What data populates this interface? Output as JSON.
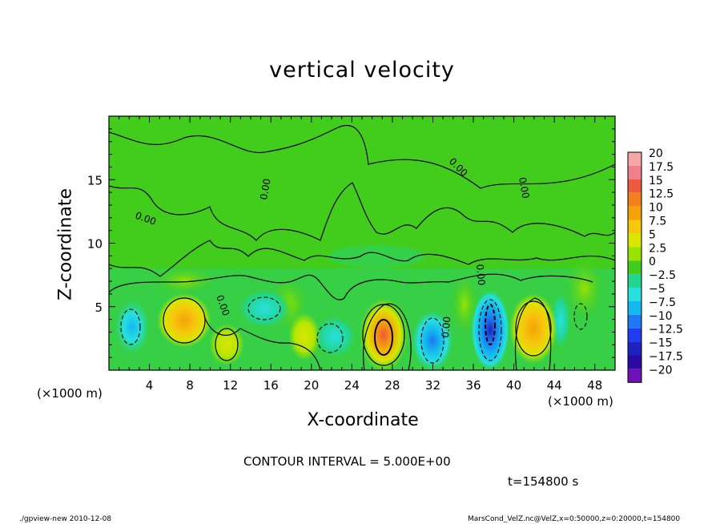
{
  "title": "vertical velocity",
  "contour_interval": "CONTOUR INTERVAL = 5.000E+00",
  "time_label": "t=154800 s",
  "footer_left": "./gpview-new  2010-12-08",
  "footer_right": "MarsCond_VelZ.nc@VelZ,x=0:50000,z=0:20000,t=154800",
  "chart_data": {
    "type": "heatmap",
    "title": "vertical velocity",
    "xlabel": "X-coordinate",
    "ylabel": "Z-coordinate",
    "x_unit": "(×1000 m)",
    "y_unit": "(×1000 m)",
    "xlim": [
      0,
      50
    ],
    "ylim": [
      0,
      20
    ],
    "x_ticks": [
      4,
      8,
      12,
      16,
      20,
      24,
      28,
      32,
      36,
      40,
      44,
      48
    ],
    "y_ticks": [
      5,
      10,
      15
    ],
    "colorbar": {
      "labels": [
        "20",
        "17.5",
        "15",
        "12.5",
        "10",
        "7.5",
        "5",
        "2.5",
        "0",
        "-2.5",
        "-5",
        "-7.5",
        "-10",
        "-12.5",
        "-15",
        "-17.5",
        "-20"
      ],
      "colors": [
        "#f5a7a7",
        "#f07f8c",
        "#ee5a3c",
        "#f2801d",
        "#f5a20a",
        "#f6c80c",
        "#d9e600",
        "#98e400",
        "#42cc1c",
        "#22d690",
        "#28e0e0",
        "#12b8ee",
        "#1c78f4",
        "#1f3cf0",
        "#1e20c0",
        "#2a0aa2",
        "#7010b8"
      ]
    },
    "contour_labels": [
      "0.00",
      "0.00",
      "0.00",
      "0.00",
      "0.00",
      "0.00",
      "0.00"
    ],
    "features": [
      {
        "name": "updraft",
        "x": 27,
        "z": 2.6,
        "peak": 12.5
      },
      {
        "name": "updraft",
        "x": 42,
        "z": 3.0,
        "peak": 7.5
      },
      {
        "name": "updraft",
        "x": 7.5,
        "z": 3.7,
        "peak": 7.5
      },
      {
        "name": "updraft",
        "x": 11.5,
        "z": 2.0,
        "peak": 5
      },
      {
        "name": "downdraft",
        "x": 37.5,
        "z": 3.0,
        "peak": -12.5
      },
      {
        "name": "downdraft",
        "x": 32,
        "z": 2.5,
        "peak": -7.5
      },
      {
        "name": "downdraft",
        "x": 2.3,
        "z": 3.2,
        "peak": -7.5
      },
      {
        "name": "downdraft",
        "x": 15,
        "z": 5.0,
        "peak": -5
      },
      {
        "name": "downdraft",
        "x": 22.5,
        "z": 3.0,
        "peak": -5
      }
    ]
  }
}
